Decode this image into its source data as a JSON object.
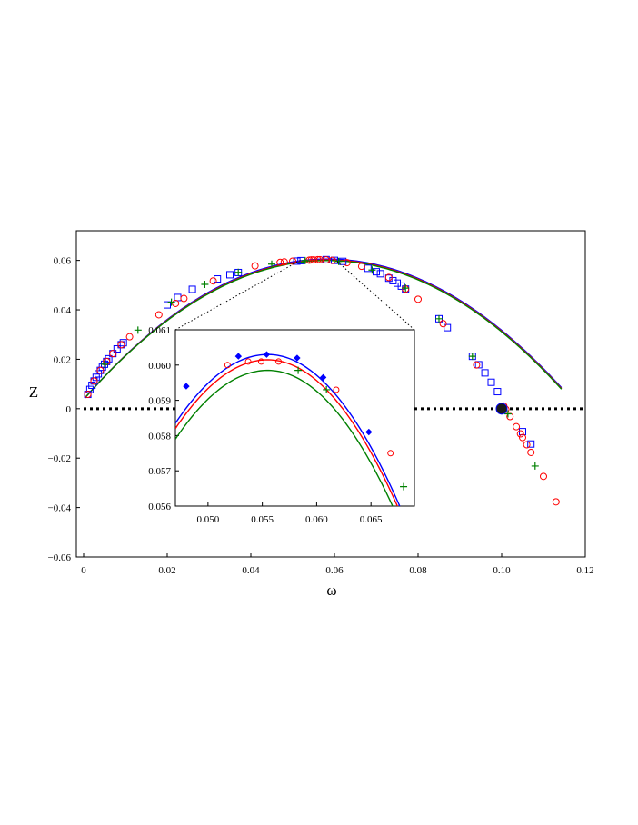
{
  "chart_data": {
    "type": "line",
    "title": "",
    "xlabel": "ω",
    "ylabel": "Z",
    "xlim": [
      0,
      0.12
    ],
    "ylim": [
      -0.06,
      0.072
    ],
    "x_ticks": [
      "0",
      "0.02",
      "0.04",
      "0.06",
      "0.08",
      "0.10",
      "0.12"
    ],
    "y_ticks": [
      "−0.06",
      "−0.04",
      "−0.02",
      "0",
      "0.02",
      "0.04",
      "0.06"
    ],
    "grid": false,
    "reference_line": {
      "y": 0,
      "style": "dotted"
    },
    "root_point": {
      "x": 0.1,
      "y": 0
    },
    "series": [
      {
        "color": "#0000ff",
        "marker": "square",
        "x": [
          0.001,
          0.0015,
          0.002,
          0.0025,
          0.003,
          0.0035,
          0.004,
          0.0045,
          0.005,
          0.0055,
          0.006,
          0.007,
          0.008,
          0.009,
          0.0095,
          0.02,
          0.0225,
          0.026,
          0.032,
          0.035,
          0.037,
          0.051,
          0.052,
          0.058,
          0.06,
          0.062,
          0.068,
          0.07,
          0.071,
          0.073,
          0.074,
          0.075,
          0.076,
          0.077,
          0.085,
          0.087,
          0.093,
          0.0945,
          0.096,
          0.0975,
          0.099,
          0.105,
          0.107
        ],
        "y": [
          0.0058,
          0.0078,
          0.0095,
          0.0112,
          0.0127,
          0.0141,
          0.0155,
          0.0168,
          0.018,
          0.0191,
          0.0202,
          0.0223,
          0.0242,
          0.0259,
          0.0267,
          0.042,
          0.045,
          0.0483,
          0.0525,
          0.0542,
          0.0551,
          0.0597,
          0.0599,
          0.0603,
          0.06,
          0.0596,
          0.0568,
          0.0554,
          0.0546,
          0.0528,
          0.0518,
          0.0508,
          0.0496,
          0.0484,
          0.0364,
          0.0328,
          0.0212,
          0.0178,
          0.0145,
          0.0107,
          0.0069,
          -0.0093,
          -0.0143
        ]
      },
      {
        "color": "#ff0000",
        "marker": "circle",
        "x": [
          0.001,
          0.0025,
          0.004,
          0.0055,
          0.007,
          0.009,
          0.011,
          0.018,
          0.022,
          0.024,
          0.031,
          0.041,
          0.047,
          0.048,
          0.05,
          0.054,
          0.0545,
          0.055,
          0.056,
          0.0565,
          0.058,
          0.0595,
          0.063,
          0.0665,
          0.073,
          0.077,
          0.08,
          0.086,
          0.094,
          0.1005,
          0.101,
          0.102,
          0.1035,
          0.1045,
          0.105,
          0.106,
          0.107,
          0.11,
          0.113
        ],
        "y": [
          0.0058,
          0.0112,
          0.0155,
          0.0191,
          0.0223,
          0.0259,
          0.0291,
          0.038,
          0.0426,
          0.0446,
          0.0517,
          0.0578,
          0.0592,
          0.0594,
          0.0597,
          0.0601,
          0.0602,
          0.0602,
          0.0603,
          0.0603,
          0.0602,
          0.06,
          0.0591,
          0.0576,
          0.0531,
          0.0484,
          0.0443,
          0.0344,
          0.0177,
          0.0011,
          -0.0003,
          -0.0032,
          -0.0073,
          -0.0102,
          -0.0117,
          -0.0146,
          -0.0177,
          -0.0274,
          -0.0377
        ]
      },
      {
        "color": "#008000",
        "marker": "plus",
        "x": [
          0.005,
          0.013,
          0.021,
          0.029,
          0.037,
          0.045,
          0.053,
          0.061,
          0.069,
          0.077,
          0.085,
          0.093,
          0.1015,
          0.108
        ],
        "y": [
          0.018,
          0.0318,
          0.0431,
          0.0503,
          0.0552,
          0.0585,
          0.0599,
          0.0596,
          0.0561,
          0.0488,
          0.0364,
          0.0212,
          -0.0021,
          -0.0232
        ]
      }
    ],
    "inset": {
      "xlim": [
        0.047,
        0.069
      ],
      "ylim": [
        0.056,
        0.061
      ],
      "x_ticks": [
        "0.050",
        "0.055",
        "0.060",
        "0.065"
      ],
      "y_ticks": [
        "0.056",
        "0.057",
        "0.058",
        "0.059",
        "0.060",
        "0.061"
      ],
      "series": [
        {
          "color": "#0000ff",
          "marker": "diamond",
          "x": [
            0.048,
            0.0528,
            0.0554,
            0.0582,
            0.0606,
            0.0648
          ],
          "y": [
            0.0594,
            0.06025,
            0.0603,
            0.0602,
            0.05965,
            0.0581
          ]
        },
        {
          "color": "#ff0000",
          "marker": "circle",
          "x": [
            0.0518,
            0.0537,
            0.0549,
            0.0565,
            0.0618,
            0.0668
          ],
          "y": [
            0.06,
            0.0601,
            0.0601,
            0.0601,
            0.0593,
            0.0575
          ]
        },
        {
          "color": "#008000",
          "marker": "plus",
          "x": [
            0.0583,
            0.0609,
            0.068
          ],
          "y": [
            0.05985,
            0.0593,
            0.05655
          ]
        }
      ]
    }
  }
}
